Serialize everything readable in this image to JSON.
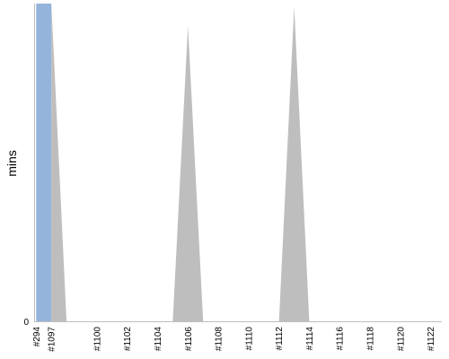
{
  "chart_data": {
    "type": "area",
    "title": "",
    "xlabel": "",
    "ylabel": "mins",
    "y_ticks": [
      "0"
    ],
    "x_tick_labels": [
      "#294",
      "#1097",
      "#1100",
      "#1102",
      "#1104",
      "#1106",
      "#1108",
      "#1110",
      "#1112",
      "#1114",
      "#1116",
      "#1118",
      "#1120",
      "#1122"
    ],
    "grid": false,
    "legend": "none",
    "series": [
      {
        "color": "#94b4dc",
        "points": [
          {
            "x": "#294",
            "y": 100
          },
          {
            "x": "#1097",
            "y": 100
          }
        ]
      },
      {
        "color": "#bebebe",
        "points": [
          {
            "x": "#1097",
            "y": 100
          },
          {
            "x": "#1098",
            "y": 0
          },
          {
            "x": "#1105",
            "y": 0
          },
          {
            "x": "#1106",
            "y": 93
          },
          {
            "x": "#1107",
            "y": 0
          },
          {
            "x": "#1112",
            "y": 0
          },
          {
            "x": "#1113",
            "y": 99
          },
          {
            "x": "#1114",
            "y": 0
          }
        ]
      }
    ]
  }
}
